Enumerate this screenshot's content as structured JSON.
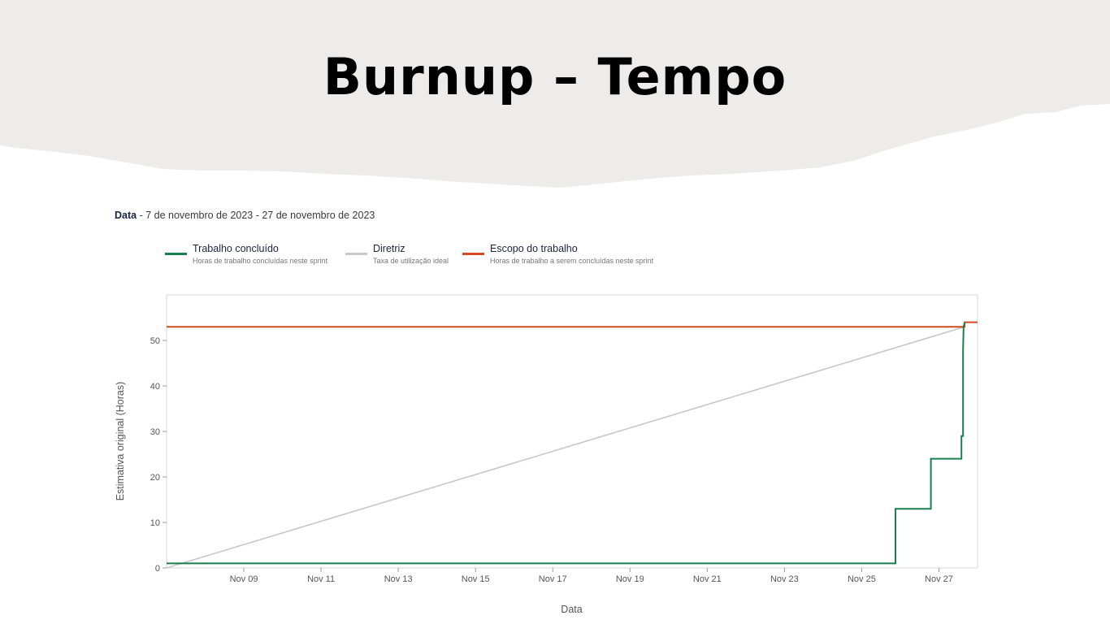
{
  "slide": {
    "title": "Burnup – Tempo"
  },
  "date_range": {
    "label": "Data",
    "value": " - 7 de novembro de 2023 - 27 de novembro de 2023"
  },
  "legend": [
    {
      "name": "Trabalho concluído",
      "description": "Horas de trabalho concluídas neste sprint",
      "color": "#1a7f4f"
    },
    {
      "name": "Diretriz",
      "description": "Taxa de utilização ideal",
      "color": "#c8c8c8"
    },
    {
      "name": "Escopo do trabalho",
      "description": "Horas de trabalho a serem concluídas neste sprint",
      "color": "#d44a22"
    }
  ],
  "colors": {
    "header_background": "#edecea",
    "completed": "#1a7f4f",
    "guideline": "#c8c8c8",
    "scope": "#d44a22"
  },
  "chart_data": {
    "type": "line",
    "xlabel": "Data",
    "ylabel": "Estimativa original (Horas)",
    "xlim": [
      "2023-11-07",
      "2023-11-28"
    ],
    "ylim": [
      0,
      60
    ],
    "x_ticks": [
      "2023-11-09",
      "2023-11-11",
      "2023-11-13",
      "2023-11-15",
      "2023-11-17",
      "2023-11-19",
      "2023-11-21",
      "2023-11-23",
      "2023-11-25",
      "2023-11-27"
    ],
    "x_tick_labels": [
      "Nov 09",
      "Nov 11",
      "Nov 13",
      "Nov 15",
      "Nov 17",
      "Nov 19",
      "Nov 21",
      "Nov 23",
      "Nov 25",
      "Nov 27"
    ],
    "y_ticks": [
      0,
      10,
      20,
      30,
      40,
      50
    ],
    "y_tick_labels": [
      "0",
      "10",
      "20",
      "30",
      "40",
      "50"
    ],
    "grid": false,
    "series": [
      {
        "name": "Trabalho concluído",
        "style": "step",
        "points": [
          [
            "2023-11-07T00:00",
            1
          ],
          [
            "2023-11-25T21:00",
            1
          ],
          [
            "2023-11-25T21:00",
            13
          ],
          [
            "2023-11-26T19:00",
            13
          ],
          [
            "2023-11-26T19:00",
            24
          ],
          [
            "2023-11-27T14:00",
            24
          ],
          [
            "2023-11-27T14:00",
            29
          ],
          [
            "2023-11-27T15:00",
            29
          ],
          [
            "2023-11-27T15:00",
            48
          ],
          [
            "2023-11-27T15:20",
            53
          ],
          [
            "2023-11-27T16:00",
            54
          ]
        ]
      },
      {
        "name": "Diretriz",
        "style": "line",
        "points": [
          [
            "2023-11-07T00:00",
            0
          ],
          [
            "2023-11-27T16:00",
            53
          ]
        ]
      },
      {
        "name": "Escopo do trabalho",
        "style": "step",
        "points": [
          [
            "2023-11-07T00:00",
            53
          ],
          [
            "2023-11-27T16:00",
            53
          ],
          [
            "2023-11-27T16:00",
            54
          ],
          [
            "2023-11-28T00:00",
            54
          ]
        ]
      }
    ]
  }
}
